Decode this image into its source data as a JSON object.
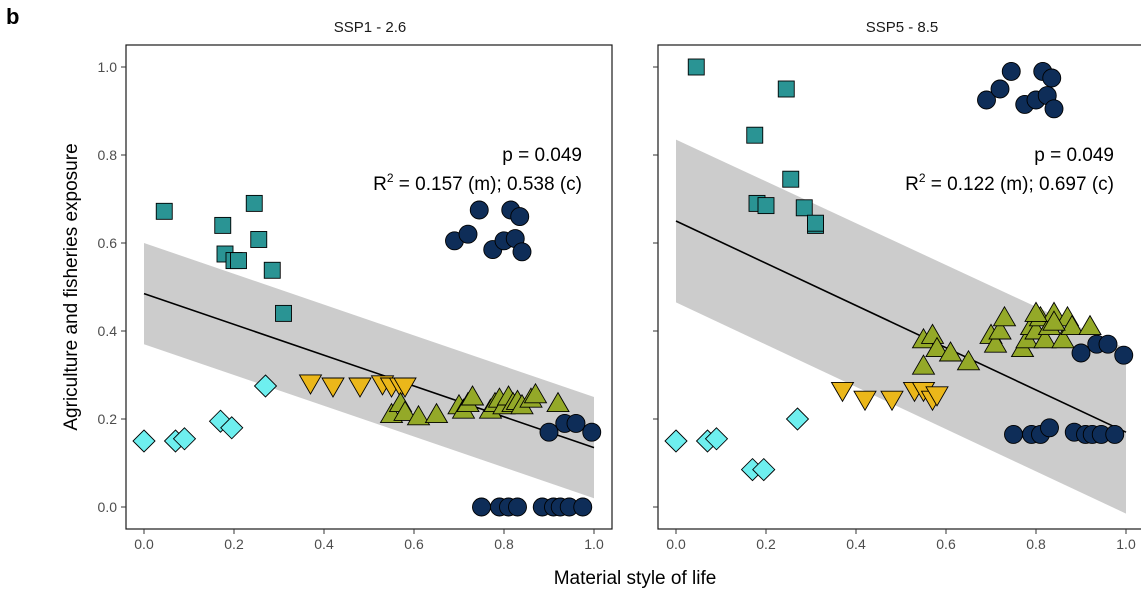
{
  "panel_label": "b",
  "chart_data": {
    "type": "scatter",
    "xlabel": "Material style of life",
    "ylabel": "Agriculture and fisheries exposure",
    "xlim": [
      -0.04,
      1.04
    ],
    "ylim": [
      -0.05,
      1.05
    ],
    "x_ticks": [
      "0.0",
      "0.2",
      "0.4",
      "0.6",
      "0.8",
      "1.0"
    ],
    "y_ticks": [
      "0.0",
      "0.2",
      "0.4",
      "0.6",
      "0.8",
      "1.0"
    ],
    "grid": false,
    "colors": {
      "diamond": "#6EEFEF",
      "square": "#2A9494",
      "triangle_down": "#EBB71A",
      "triangle_up": "#94A928",
      "circle": "#0E2D58",
      "ribbon": "#cccccc",
      "line": "#000000"
    },
    "panels": [
      {
        "title": "SSP1 - 2.6",
        "annotation": {
          "p": "p = 0.049",
          "r2_prefix": "R",
          "r2_sup": "2",
          "r2_rest": " = 0.157 (m); 0.538 (c)"
        },
        "fit": {
          "x": [
            0,
            1
          ],
          "y": [
            0.485,
            0.135
          ]
        },
        "ci": {
          "x": [
            0,
            1
          ],
          "upper": [
            0.6,
            0.25
          ],
          "lower": [
            0.37,
            0.02
          ]
        },
        "groups": [
          {
            "shape": "diamond",
            "points": [
              [
                0.0,
                0.15
              ],
              [
                0.07,
                0.15
              ],
              [
                0.09,
                0.155
              ],
              [
                0.17,
                0.195
              ],
              [
                0.195,
                0.18
              ],
              [
                0.27,
                0.275
              ]
            ]
          },
          {
            "shape": "square",
            "points": [
              [
                0.045,
                0.672
              ],
              [
                0.175,
                0.64
              ],
              [
                0.18,
                0.575
              ],
              [
                0.2,
                0.56
              ],
              [
                0.21,
                0.56
              ],
              [
                0.245,
                0.69
              ],
              [
                0.255,
                0.608
              ],
              [
                0.285,
                0.538
              ],
              [
                0.31,
                0.44
              ]
            ]
          },
          {
            "shape": "triangle_down",
            "points": [
              [
                0.37,
                0.282
              ],
              [
                0.42,
                0.275
              ],
              [
                0.48,
                0.275
              ],
              [
                0.53,
                0.28
              ],
              [
                0.55,
                0.275
              ],
              [
                0.57,
                0.275
              ],
              [
                0.58,
                0.275
              ]
            ]
          },
          {
            "shape": "triangle_up",
            "points": [
              [
                0.55,
                0.21
              ],
              [
                0.57,
                0.235
              ],
              [
                0.58,
                0.215
              ],
              [
                0.61,
                0.205
              ],
              [
                0.65,
                0.21
              ],
              [
                0.7,
                0.23
              ],
              [
                0.71,
                0.22
              ],
              [
                0.72,
                0.235
              ],
              [
                0.73,
                0.25
              ],
              [
                0.77,
                0.22
              ],
              [
                0.78,
                0.235
              ],
              [
                0.79,
                0.245
              ],
              [
                0.8,
                0.23
              ],
              [
                0.81,
                0.25
              ],
              [
                0.82,
                0.235
              ],
              [
                0.83,
                0.24
              ],
              [
                0.84,
                0.23
              ],
              [
                0.86,
                0.245
              ],
              [
                0.87,
                0.255
              ],
              [
                0.92,
                0.235
              ]
            ]
          },
          {
            "shape": "circle",
            "points": [
              [
                0.69,
                0.605
              ],
              [
                0.72,
                0.62
              ],
              [
                0.745,
                0.675
              ],
              [
                0.775,
                0.585
              ],
              [
                0.8,
                0.605
              ],
              [
                0.815,
                0.675
              ],
              [
                0.825,
                0.61
              ],
              [
                0.835,
                0.66
              ],
              [
                0.84,
                0.58
              ],
              [
                0.75,
                0.0
              ],
              [
                0.79,
                0.0
              ],
              [
                0.81,
                0.0
              ],
              [
                0.83,
                0.0
              ],
              [
                0.885,
                0.0
              ],
              [
                0.91,
                0.0
              ],
              [
                0.925,
                0.0
              ],
              [
                0.945,
                0.0
              ],
              [
                0.975,
                0.0
              ],
              [
                0.9,
                0.17
              ],
              [
                0.935,
                0.19
              ],
              [
                0.96,
                0.19
              ],
              [
                0.995,
                0.17
              ]
            ]
          }
        ]
      },
      {
        "title": "SSP5 - 8.5",
        "annotation": {
          "p": "p = 0.049",
          "r2_prefix": "R",
          "r2_sup": "2",
          "r2_rest": " = 0.122 (m); 0.697 (c)"
        },
        "fit": {
          "x": [
            0,
            1
          ],
          "y": [
            0.65,
            0.17
          ]
        },
        "ci": {
          "x": [
            0,
            1
          ],
          "upper": [
            0.835,
            0.36
          ],
          "lower": [
            0.465,
            -0.015
          ]
        },
        "groups": [
          {
            "shape": "diamond",
            "points": [
              [
                0.0,
                0.15
              ],
              [
                0.07,
                0.15
              ],
              [
                0.09,
                0.155
              ],
              [
                0.17,
                0.085
              ],
              [
                0.195,
                0.085
              ],
              [
                0.27,
                0.2
              ]
            ]
          },
          {
            "shape": "square",
            "points": [
              [
                0.045,
                1.0
              ],
              [
                0.175,
                0.845
              ],
              [
                0.18,
                0.69
              ],
              [
                0.2,
                0.685
              ],
              [
                0.245,
                0.95
              ],
              [
                0.255,
                0.745
              ],
              [
                0.285,
                0.68
              ],
              [
                0.31,
                0.64
              ],
              [
                0.31,
                0.645
              ]
            ]
          },
          {
            "shape": "triangle_down",
            "points": [
              [
                0.37,
                0.265
              ],
              [
                0.42,
                0.245
              ],
              [
                0.48,
                0.245
              ],
              [
                0.53,
                0.265
              ],
              [
                0.55,
                0.265
              ],
              [
                0.57,
                0.245
              ],
              [
                0.58,
                0.255
              ]
            ]
          },
          {
            "shape": "triangle_up",
            "points": [
              [
                0.55,
                0.38
              ],
              [
                0.55,
                0.32
              ],
              [
                0.57,
                0.39
              ],
              [
                0.58,
                0.36
              ],
              [
                0.61,
                0.35
              ],
              [
                0.65,
                0.33
              ],
              [
                0.7,
                0.39
              ],
              [
                0.71,
                0.37
              ],
              [
                0.72,
                0.4
              ],
              [
                0.73,
                0.43
              ],
              [
                0.77,
                0.36
              ],
              [
                0.78,
                0.38
              ],
              [
                0.79,
                0.41
              ],
              [
                0.8,
                0.4
              ],
              [
                0.81,
                0.43
              ],
              [
                0.82,
                0.38
              ],
              [
                0.83,
                0.41
              ],
              [
                0.84,
                0.44
              ],
              [
                0.86,
                0.38
              ],
              [
                0.87,
                0.43
              ],
              [
                0.88,
                0.41
              ],
              [
                0.92,
                0.41
              ],
              [
                0.8,
                0.44
              ],
              [
                0.84,
                0.42
              ]
            ]
          },
          {
            "shape": "circle",
            "points": [
              [
                0.69,
                0.925
              ],
              [
                0.72,
                0.95
              ],
              [
                0.745,
                0.99
              ],
              [
                0.775,
                0.915
              ],
              [
                0.8,
                0.925
              ],
              [
                0.815,
                0.99
              ],
              [
                0.825,
                0.935
              ],
              [
                0.835,
                0.975
              ],
              [
                0.84,
                0.905
              ],
              [
                0.75,
                0.165
              ],
              [
                0.79,
                0.165
              ],
              [
                0.81,
                0.165
              ],
              [
                0.83,
                0.18
              ],
              [
                0.885,
                0.17
              ],
              [
                0.91,
                0.165
              ],
              [
                0.925,
                0.165
              ],
              [
                0.945,
                0.165
              ],
              [
                0.975,
                0.165
              ],
              [
                0.9,
                0.35
              ],
              [
                0.935,
                0.37
              ],
              [
                0.96,
                0.37
              ],
              [
                0.995,
                0.345
              ]
            ]
          }
        ]
      }
    ]
  }
}
